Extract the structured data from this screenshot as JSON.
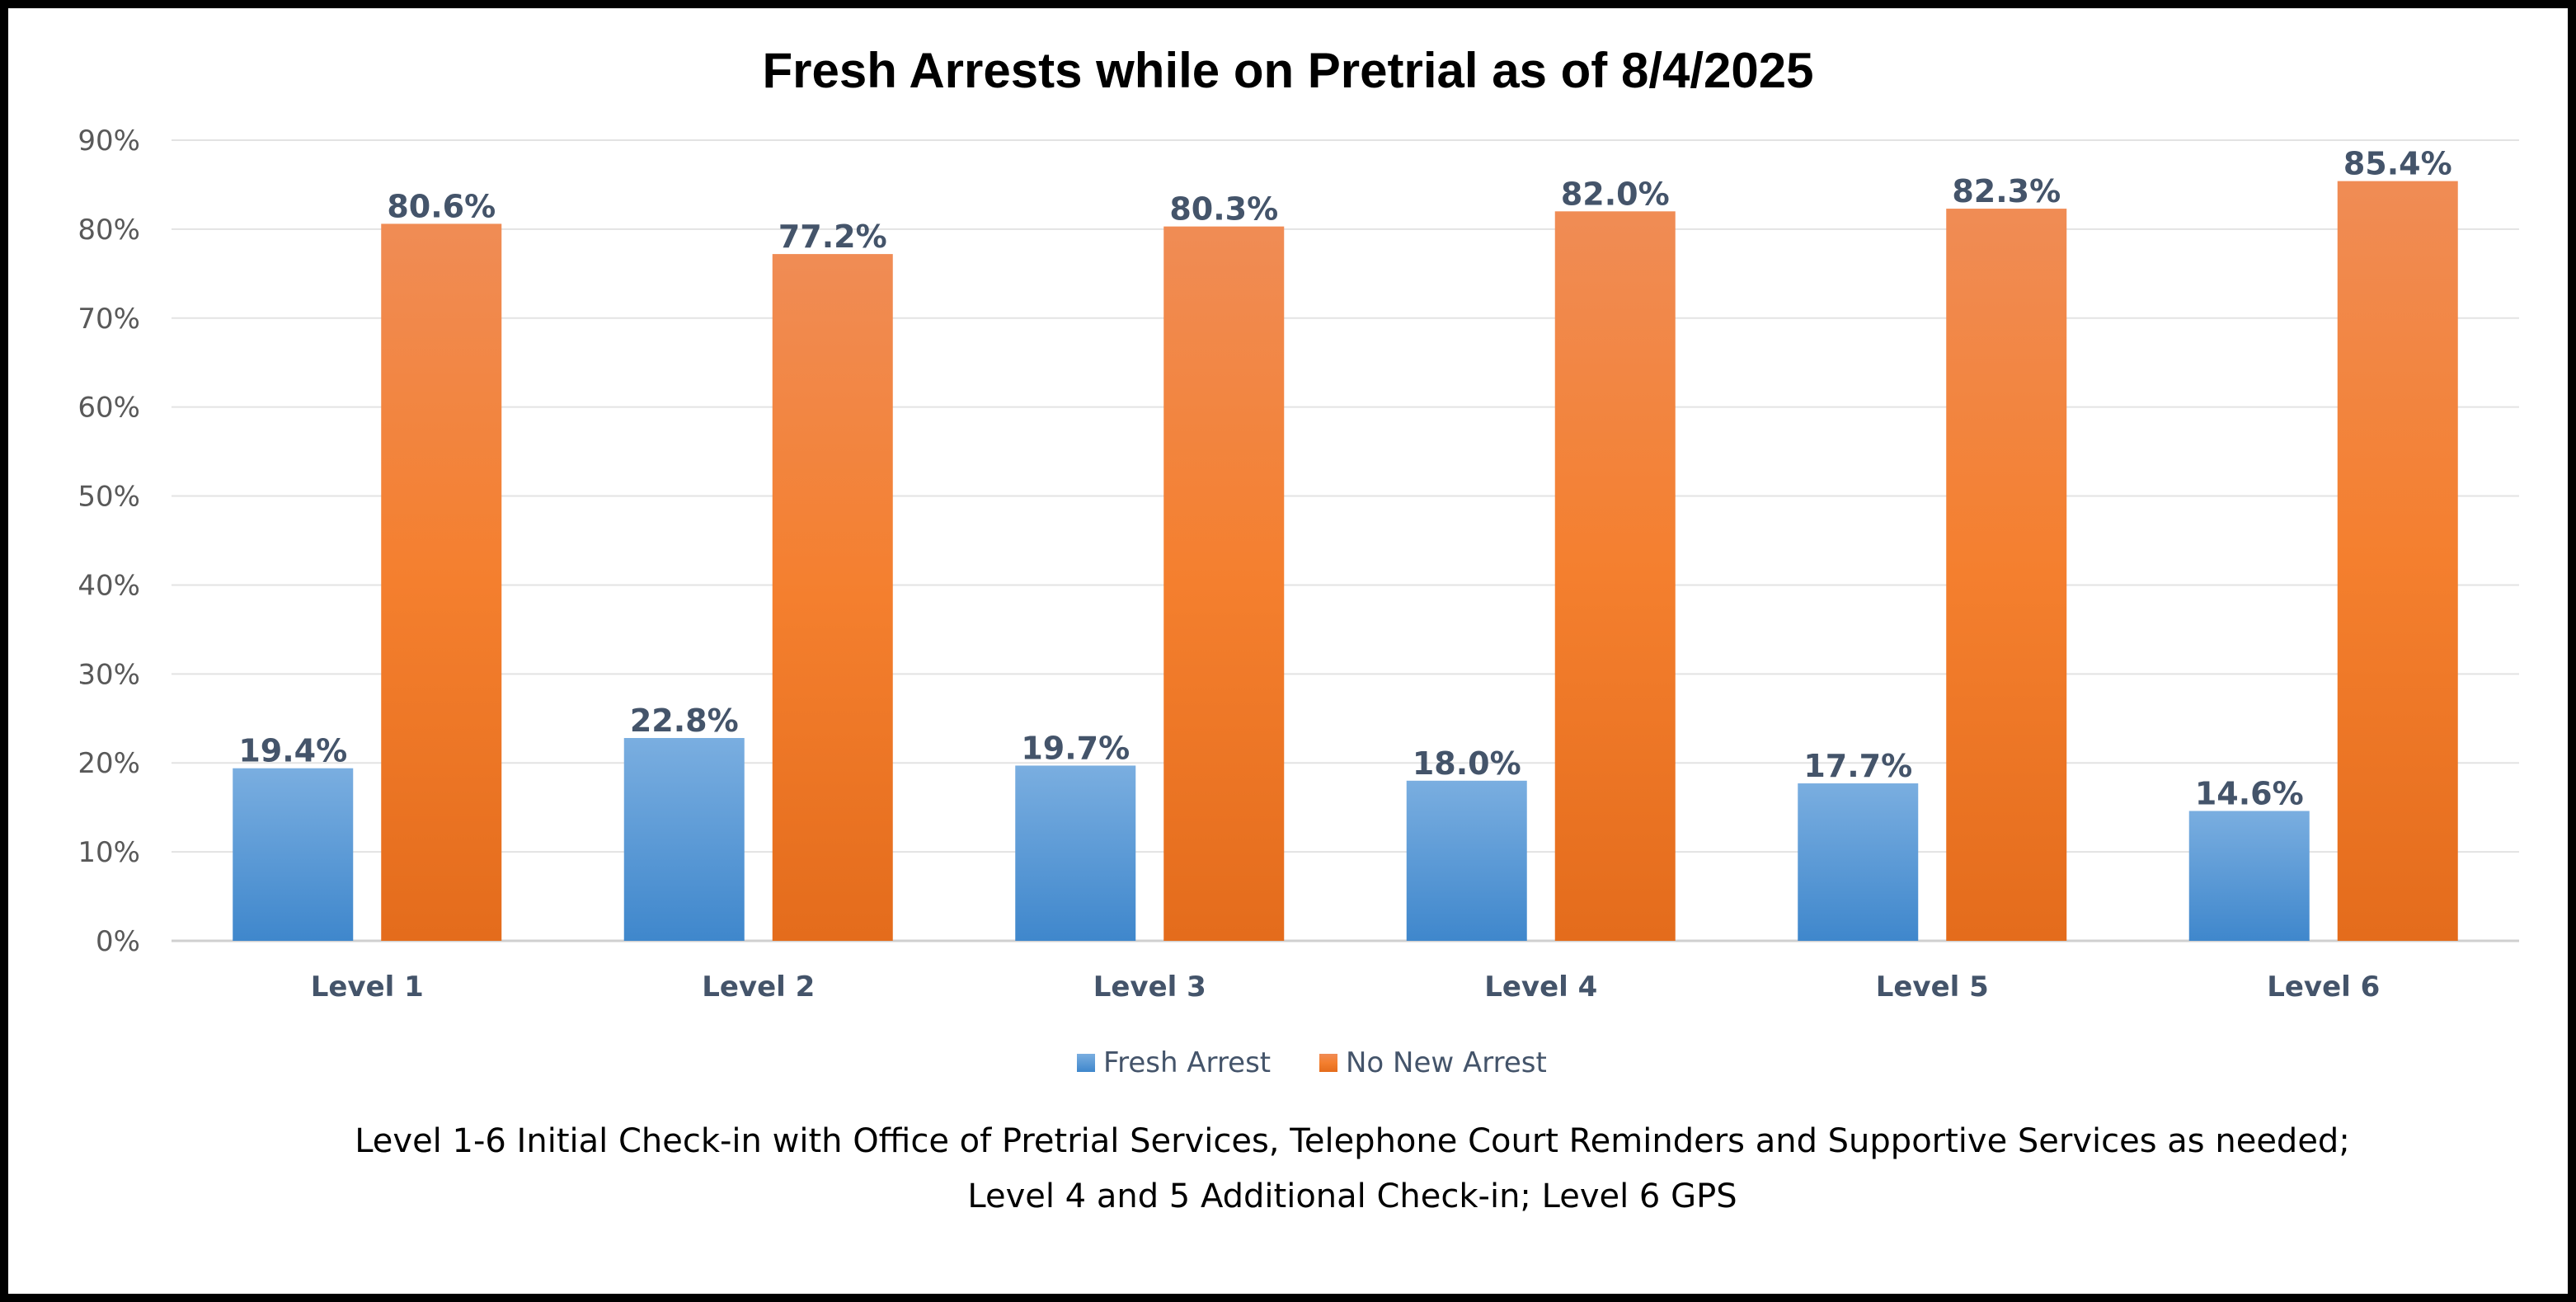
{
  "chart_data": {
    "type": "bar",
    "title": "Fresh Arrests while on Pretrial as of 8/4/2025",
    "xlabel": "",
    "ylabel": "",
    "ylim": [
      0,
      90
    ],
    "y_ticks": [
      "0%",
      "10%",
      "20%",
      "30%",
      "40%",
      "50%",
      "60%",
      "70%",
      "80%",
      "90%"
    ],
    "grid": true,
    "legend": "bottom",
    "categories": [
      "Level 1",
      "Level 2",
      "Level 3",
      "Level 4",
      "Level 5",
      "Level 6"
    ],
    "series": [
      {
        "name": "Fresh Arrest",
        "values": [
          19.4,
          22.8,
          19.7,
          18.0,
          17.7,
          14.6
        ],
        "labels": [
          "19.4%",
          "22.8%",
          "19.7%",
          "18.0%",
          "17.7%",
          "14.6%"
        ],
        "color": "#5b9bd5"
      },
      {
        "name": "No New Arrest",
        "values": [
          80.6,
          77.2,
          80.3,
          82.0,
          82.3,
          85.4
        ],
        "labels": [
          "80.6%",
          "77.2%",
          "80.3%",
          "82.0%",
          "82.3%",
          "85.4%"
        ],
        "color": "#ed7d31"
      }
    ],
    "annotations": [
      "Level 1-6 Initial Check-in with Office of Pretrial Services, Telephone Court Reminders and Supportive Services as needed;",
      "Level 4 and 5 Additional Check-in; Level 6 GPS"
    ]
  }
}
